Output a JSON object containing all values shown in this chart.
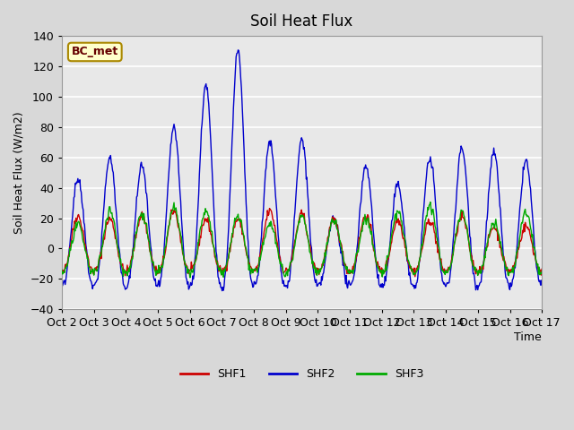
{
  "title": "Soil Heat Flux",
  "ylabel": "Soil Heat Flux (W/m2)",
  "xlabel": "Time",
  "ylim": [
    -40,
    140
  ],
  "background_color": "#e8e8e8",
  "plot_bg_color": "#e8e8e8",
  "grid_color": "white",
  "colors": {
    "SHF1": "#cc0000",
    "SHF2": "#0000cc",
    "SHF3": "#00aa00"
  },
  "annotation_text": "BC_met",
  "annotation_box_color": "#ffffcc",
  "annotation_border_color": "#aa8800",
  "x_tick_labels": [
    "Oct 2",
    "Oct 3",
    "Oct 4",
    "Oct 5",
    "Oct 6",
    "Oct 7",
    "Oct 8",
    "Oct 9",
    "Oct 10",
    "Oct 11",
    "Oct 12",
    "Oct 13",
    "Oct 14",
    "Oct 15",
    "Oct 16",
    "Oct 17"
  ],
  "n_days": 15,
  "pts_per_day": 48
}
